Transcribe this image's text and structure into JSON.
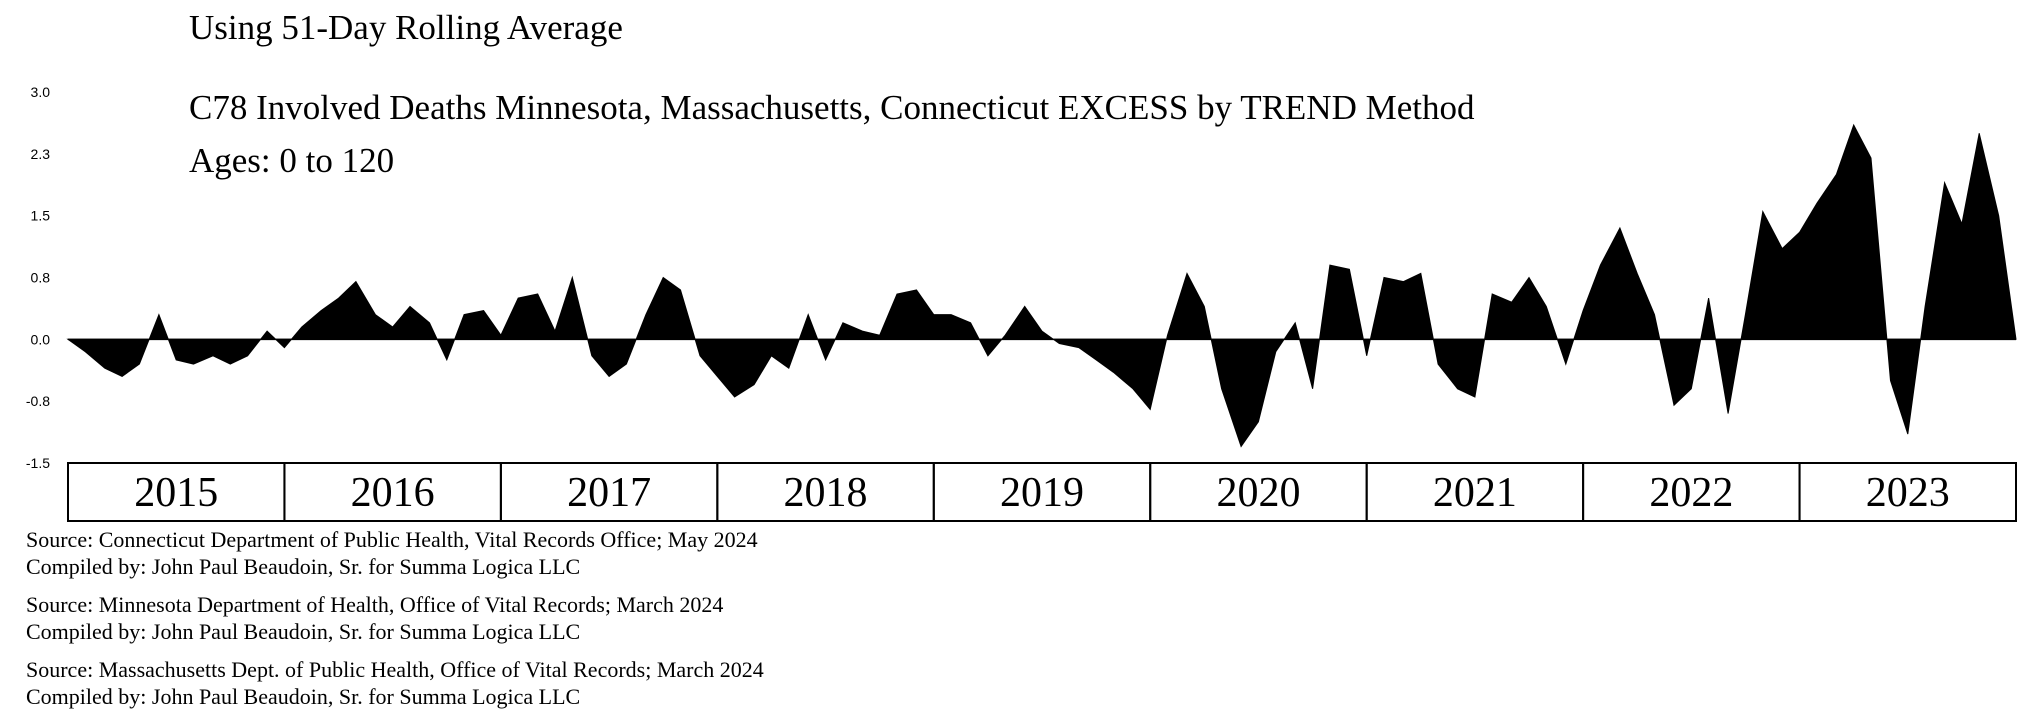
{
  "header": {
    "subtitle": "Using 51-Day Rolling Average",
    "title": "C78 Involved Deaths Minnesota, Massachusetts, Connecticut EXCESS by TREND Method",
    "ages": "Ages:  0 to 120"
  },
  "chart_data": {
    "type": "area",
    "title": "C78 Involved Deaths Minnesota, Massachusetts, Connecticut EXCESS by TREND Method",
    "subtitle": "Using 51-Day Rolling Average",
    "xlabel": "",
    "ylabel": "",
    "ylim": [
      -1.5,
      3.0
    ],
    "yticks": [
      {
        "value": 3.0,
        "label": "3.0"
      },
      {
        "value": 2.25,
        "label": "2.3"
      },
      {
        "value": 1.5,
        "label": "1.5"
      },
      {
        "value": 0.75,
        "label": "0.8"
      },
      {
        "value": 0.0,
        "label": "0.0"
      },
      {
        "value": -0.75,
        "label": "-0.8"
      },
      {
        "value": -1.5,
        "label": "-1.5"
      }
    ],
    "years": [
      "2015",
      "2016",
      "2017",
      "2018",
      "2019",
      "2020",
      "2021",
      "2022",
      "2023"
    ],
    "x_start": 2015.0,
    "x_end": 2024.0,
    "series": [
      {
        "name": "Excess (51-day rolling average)",
        "x": [
          2015.0,
          2015.08,
          2015.17,
          2015.25,
          2015.33,
          2015.42,
          2015.5,
          2015.58,
          2015.67,
          2015.75,
          2015.83,
          2015.92,
          2016.0,
          2016.08,
          2016.17,
          2016.25,
          2016.33,
          2016.42,
          2016.5,
          2016.58,
          2016.67,
          2016.75,
          2016.83,
          2016.92,
          2017.0,
          2017.08,
          2017.17,
          2017.25,
          2017.33,
          2017.42,
          2017.5,
          2017.58,
          2017.67,
          2017.75,
          2017.83,
          2017.92,
          2018.0,
          2018.08,
          2018.17,
          2018.25,
          2018.33,
          2018.42,
          2018.5,
          2018.58,
          2018.67,
          2018.75,
          2018.83,
          2018.92,
          2019.0,
          2019.08,
          2019.17,
          2019.25,
          2019.33,
          2019.42,
          2019.5,
          2019.58,
          2019.67,
          2019.75,
          2019.83,
          2019.92,
          2020.0,
          2020.08,
          2020.17,
          2020.25,
          2020.33,
          2020.42,
          2020.5,
          2020.58,
          2020.67,
          2020.75,
          2020.83,
          2020.92,
          2021.0,
          2021.08,
          2021.17,
          2021.25,
          2021.33,
          2021.42,
          2021.5,
          2021.58,
          2021.67,
          2021.75,
          2021.83,
          2021.92,
          2022.0,
          2022.08,
          2022.17,
          2022.25,
          2022.33,
          2022.42,
          2022.5,
          2022.58,
          2022.67,
          2022.75,
          2022.83,
          2022.92,
          2023.0,
          2023.08,
          2023.17,
          2023.25,
          2023.33,
          2023.42,
          2023.5,
          2023.58,
          2023.67,
          2023.75,
          2023.83,
          2023.92,
          2024.0
        ],
        "values": [
          0.0,
          -0.15,
          -0.35,
          -0.45,
          -0.3,
          0.3,
          -0.25,
          -0.3,
          -0.2,
          -0.3,
          -0.2,
          0.1,
          -0.1,
          0.15,
          0.35,
          0.5,
          0.7,
          0.3,
          0.15,
          0.4,
          0.2,
          -0.25,
          0.3,
          0.35,
          0.05,
          0.5,
          0.55,
          0.1,
          0.75,
          -0.2,
          -0.45,
          -0.3,
          0.3,
          0.75,
          0.6,
          -0.2,
          -0.45,
          -0.7,
          -0.55,
          -0.2,
          -0.35,
          0.3,
          -0.25,
          0.2,
          0.1,
          0.05,
          0.55,
          0.6,
          0.3,
          0.3,
          0.2,
          -0.2,
          0.05,
          0.4,
          0.1,
          -0.05,
          -0.1,
          -0.25,
          -0.4,
          -0.6,
          -0.85,
          0.05,
          0.8,
          0.4,
          -0.6,
          -1.3,
          -1.0,
          -0.15,
          0.2,
          -0.6,
          0.9,
          0.85,
          -0.2,
          0.75,
          0.7,
          0.8,
          -0.3,
          -0.6,
          -0.7,
          0.55,
          0.45,
          0.75,
          0.4,
          -0.3,
          0.35,
          0.9,
          1.35,
          0.8,
          0.3,
          -0.8,
          -0.6,
          0.5,
          -0.9,
          0.3,
          1.55,
          1.1,
          1.3,
          1.65,
          2.0,
          2.6,
          2.2,
          -0.5,
          -1.15,
          0.4,
          1.9,
          1.4,
          2.5,
          1.5,
          0.0
        ]
      }
    ]
  },
  "sources": [
    {
      "source": "Source:  Connecticut Department of Public Health, Vital Records Office; May 2024",
      "compiled": "Compiled by:  John Paul Beaudoin, Sr. for Summa Logica LLC"
    },
    {
      "source": "Source:  Minnesota Department of Health, Office of Vital Records; March 2024",
      "compiled": "Compiled by:  John Paul Beaudoin, Sr. for Summa Logica LLC"
    },
    {
      "source": "Source:  Massachusetts Dept. of Public Health, Office of Vital Records; March 2024",
      "compiled": "Compiled by:  John Paul Beaudoin, Sr. for Summa Logica LLC"
    }
  ]
}
